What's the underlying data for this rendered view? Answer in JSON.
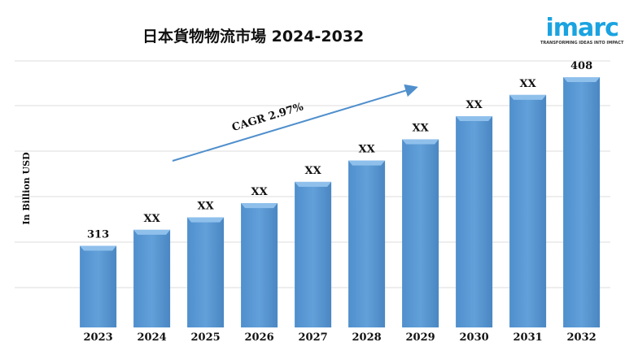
{
  "chart_data": {
    "type": "bar",
    "title": "日本貨物物流市場 2024-2032",
    "ylabel": "In Billion USD",
    "xlabel": "",
    "categories": [
      "2023",
      "2024",
      "2025",
      "2026",
      "2027",
      "2028",
      "2029",
      "2030",
      "2031",
      "2032"
    ],
    "values": [
      313,
      322,
      329,
      337,
      349,
      361,
      373,
      386,
      398,
      408
    ],
    "data_labels": [
      "313",
      "XX",
      "XX",
      "XX",
      "XX",
      "XX",
      "XX",
      "XX",
      "XX",
      "408"
    ],
    "ylim": [
      267,
      420
    ],
    "grid": true,
    "annotation": "CAGR 2.97%",
    "bar_color": "#5b9bd5"
  },
  "logo": {
    "brand": "imarc",
    "tagline": "TRANSFORMING IDEAS INTO IMPACT"
  }
}
